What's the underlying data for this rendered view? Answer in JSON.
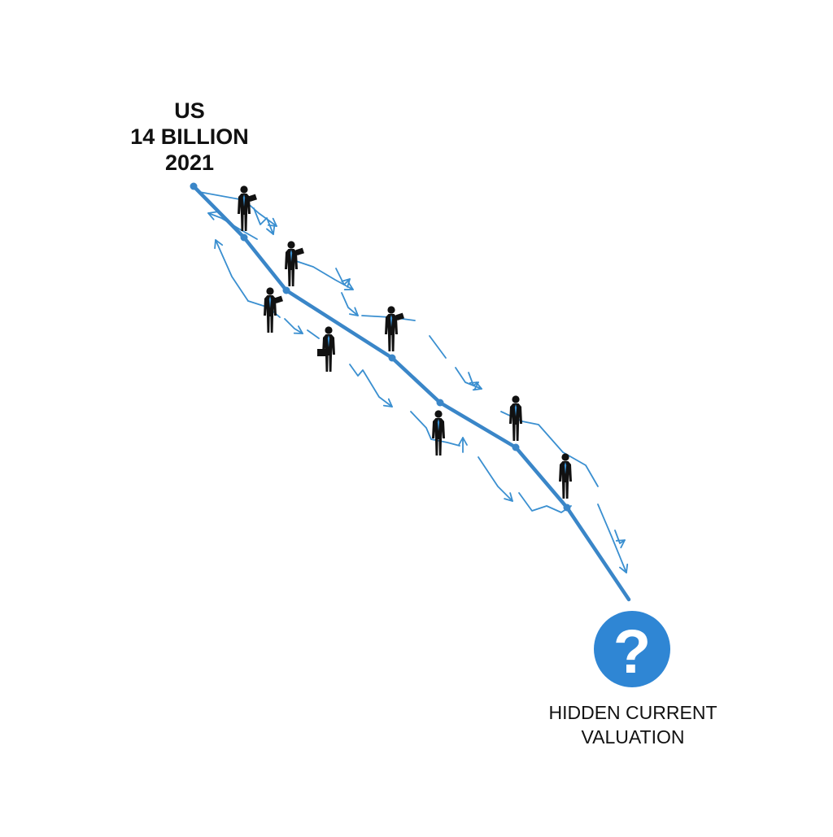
{
  "start_label": {
    "line1": "US",
    "line2": "14 BILLION",
    "line3": "2021"
  },
  "end_label": {
    "line1": "HIDDEN CURRENT",
    "line2": "VALUATION"
  },
  "question_mark": "?",
  "colors": {
    "trend_line": "#3a86c8",
    "arrow": "#3a8fd0",
    "badge": "#2f86d4",
    "figure": "#111111",
    "text": "#111111"
  },
  "icons": {
    "figure": "businessperson-icon",
    "badge": "question-mark-icon"
  }
}
